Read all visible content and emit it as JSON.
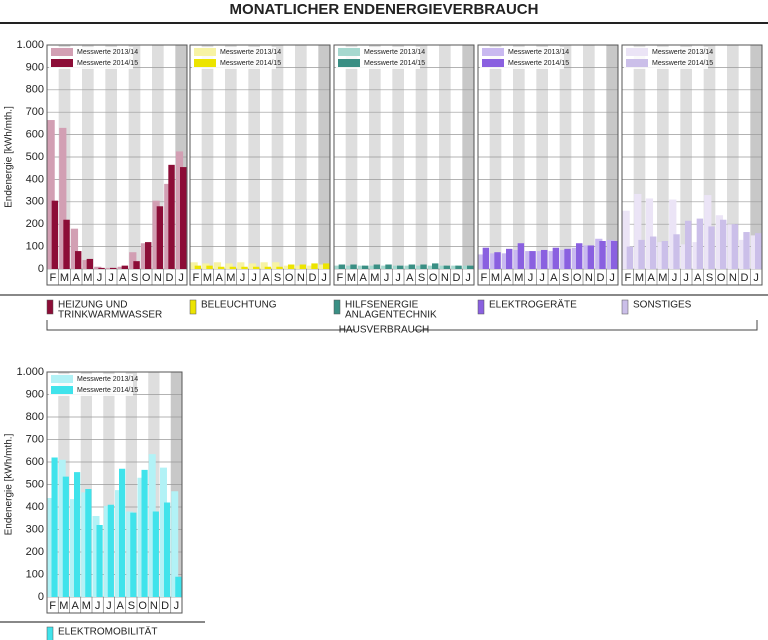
{
  "title": "MONATLICHER ENDENERGIEVERBRAUCH",
  "group_label": "HAUSVERBRAUCH",
  "chart_data": [
    {
      "type": "bar",
      "y_label": "Endenergie [kWh/mth.]",
      "legend_label": [
        "HEIZUNG UND",
        "TRINKWARMWASSER"
      ],
      "categories": [
        "F",
        "M",
        "A",
        "M",
        "J",
        "J",
        "A",
        "S",
        "O",
        "N",
        "D",
        "J"
      ],
      "series": [
        {
          "name": "Messwerte 2013/14",
          "color": "#d29fb3",
          "values": [
            665,
            630,
            180,
            40,
            10,
            5,
            10,
            75,
            115,
            305,
            380,
            525
          ]
        },
        {
          "name": "Messwerte 2014/15",
          "color": "#8c0d37",
          "values": [
            305,
            220,
            80,
            45,
            5,
            5,
            15,
            35,
            120,
            280,
            465,
            455
          ]
        }
      ],
      "ylim": [
        0,
        1000
      ],
      "tick_labels": true,
      "yticks": [
        0,
        100,
        200,
        300,
        400,
        500,
        600,
        700,
        800,
        900,
        {
          "value": 1000,
          "label": "1.000"
        }
      ]
    },
    {
      "type": "bar",
      "legend_label": [
        "BELEUCHTUNG"
      ],
      "categories": [
        "F",
        "M",
        "A",
        "M",
        "J",
        "J",
        "A",
        "S",
        "O",
        "N",
        "D",
        "J"
      ],
      "series": [
        {
          "name": "Messwerte 2013/14",
          "color": "#f7f3a4",
          "values": [
            30,
            25,
            30,
            25,
            30,
            25,
            30,
            30,
            15,
            15,
            15,
            20
          ]
        },
        {
          "name": "Messwerte 2014/15",
          "color": "#ece400",
          "values": [
            15,
            15,
            10,
            10,
            10,
            10,
            10,
            10,
            20,
            20,
            25,
            25
          ]
        }
      ],
      "ylim": [
        0,
        1000
      ],
      "tick_labels": false,
      "yticks": [
        0,
        100,
        200,
        300,
        400,
        500,
        600,
        700,
        800,
        900,
        1000
      ]
    },
    {
      "type": "bar",
      "legend_label": [
        "HILFSENERGIE",
        "ANLAGENTECHNIK"
      ],
      "categories": [
        "F",
        "M",
        "A",
        "M",
        "J",
        "J",
        "A",
        "S",
        "O",
        "N",
        "D",
        "J"
      ],
      "series": [
        {
          "name": "Messwerte 2013/14",
          "color": "#a6d8cf",
          "values": [
            15,
            15,
            15,
            15,
            15,
            15,
            15,
            15,
            15,
            15,
            15,
            15
          ]
        },
        {
          "name": "Messwerte 2014/15",
          "color": "#3a8f84",
          "values": [
            20,
            20,
            15,
            20,
            20,
            15,
            20,
            20,
            25,
            15,
            15,
            15
          ]
        }
      ],
      "ylim": [
        0,
        1000
      ],
      "tick_labels": false,
      "yticks": [
        0,
        100,
        200,
        300,
        400,
        500,
        600,
        700,
        800,
        900,
        1000
      ]
    },
    {
      "type": "bar",
      "legend_label": [
        "ELEKTROGERÄTE"
      ],
      "categories": [
        "F",
        "M",
        "A",
        "M",
        "J",
        "J",
        "A",
        "S",
        "O",
        "N",
        "D",
        "J"
      ],
      "series": [
        {
          "name": "Messwerte 2013/14",
          "color": "#c9b9f0",
          "values": [
            65,
            70,
            70,
            85,
            80,
            80,
            80,
            85,
            95,
            105,
            135,
            130
          ]
        },
        {
          "name": "Messwerte 2014/15",
          "color": "#8a60e0",
          "values": [
            95,
            75,
            90,
            115,
            80,
            85,
            95,
            90,
            115,
            105,
            125,
            125
          ]
        }
      ],
      "ylim": [
        0,
        1000
      ],
      "tick_labels": false,
      "yticks": [
        0,
        100,
        200,
        300,
        400,
        500,
        600,
        700,
        800,
        900,
        1000
      ]
    },
    {
      "type": "bar",
      "legend_label": [
        "SONSTIGES"
      ],
      "categories": [
        "F",
        "M",
        "A",
        "M",
        "J",
        "J",
        "A",
        "S",
        "O",
        "N",
        "D",
        "J"
      ],
      "series": [
        {
          "name": "Messwerte 2013/14",
          "color": "#ebe4f6",
          "values": [
            260,
            335,
            315,
            120,
            310,
            110,
            120,
            330,
            240,
            200,
            130,
            150
          ]
        },
        {
          "name": "Messwerte 2014/15",
          "color": "#cbbfe9",
          "values": [
            100,
            130,
            145,
            125,
            155,
            215,
            225,
            190,
            220,
            200,
            165,
            160
          ]
        }
      ],
      "ylim": [
        0,
        1000
      ],
      "tick_labels": false,
      "yticks": [
        0,
        100,
        200,
        300,
        400,
        500,
        600,
        700,
        800,
        900,
        1000
      ]
    },
    {
      "type": "bar",
      "y_label": "Endenergie [kWh/mth.]",
      "legend_label": [
        "ELEKTROMOBILITÄT"
      ],
      "categories": [
        "F",
        "M",
        "A",
        "M",
        "J",
        "J",
        "A",
        "S",
        "O",
        "N",
        "D",
        "J"
      ],
      "series": [
        {
          "name": "Messwerte 2013/14",
          "color": "#b2f2f6",
          "values": [
            440,
            610,
            435,
            465,
            360,
            405,
            475,
            380,
            530,
            635,
            575,
            470
          ]
        },
        {
          "name": "Messwerte 2014/15",
          "color": "#40e3eb",
          "values": [
            620,
            535,
            555,
            480,
            320,
            410,
            570,
            375,
            565,
            380,
            420,
            90
          ]
        }
      ],
      "ylim": [
        0,
        1000
      ],
      "tick_labels": true,
      "yticks": [
        0,
        100,
        200,
        300,
        400,
        500,
        600,
        700,
        800,
        900,
        {
          "value": 1000,
          "label": "1.000"
        }
      ]
    }
  ]
}
